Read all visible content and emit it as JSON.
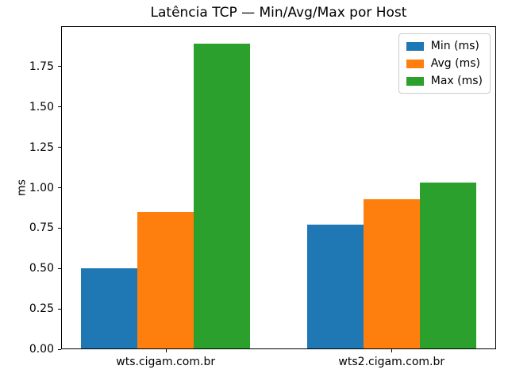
{
  "figure": {
    "background": "#ffffff"
  },
  "chart_data": {
    "type": "bar",
    "title": "Latência TCP — Min/Avg/Max por Host",
    "xlabel": "",
    "ylabel": "ms",
    "categories": [
      "wts.cigam.com.br",
      "wts2.cigam.com.br"
    ],
    "series": [
      {
        "name": "Min (ms)",
        "color": "#1f77b4",
        "values": [
          0.5,
          0.77
        ]
      },
      {
        "name": "Avg (ms)",
        "color": "#ff7f0e",
        "values": [
          0.85,
          0.93
        ]
      },
      {
        "name": "Max (ms)",
        "color": "#2ca02c",
        "values": [
          1.89,
          1.03
        ]
      }
    ],
    "ylim": [
      0,
      2.0
    ],
    "yticks": [
      0.0,
      0.25,
      0.5,
      0.75,
      1.0,
      1.25,
      1.5,
      1.75
    ],
    "ytick_labels": [
      "0.00",
      "0.25",
      "0.50",
      "0.75",
      "1.00",
      "1.25",
      "1.50",
      "1.75"
    ],
    "bar_width_units": 0.25,
    "grid": false,
    "legend": {
      "position": "upper right",
      "entries": [
        "Min (ms)",
        "Avg (ms)",
        "Max (ms)"
      ]
    },
    "axis_color": "#000000"
  }
}
